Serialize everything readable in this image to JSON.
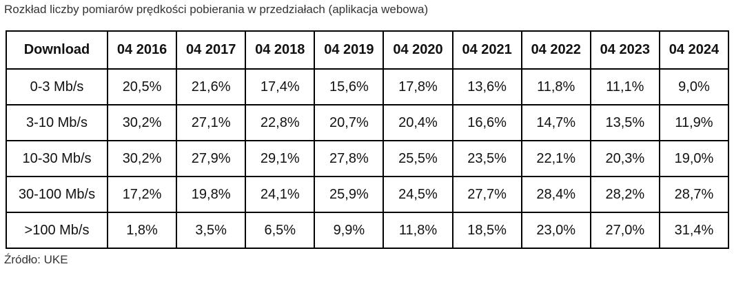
{
  "title": "Rozkład liczby pomiarów prędkości pobierania w przedziałach (aplikacja webowa)",
  "table": {
    "header": [
      "Download",
      "04 2016",
      "04 2017",
      "04 2018",
      "04 2019",
      "04 2020",
      "04 2021",
      "04 2022",
      "04 2023",
      "04 2024"
    ],
    "rows": [
      [
        "0-3 Mb/s",
        "20,5%",
        "21,6%",
        "17,4%",
        "15,6%",
        "17,8%",
        "13,6%",
        "11,8%",
        "11,1%",
        "9,0%"
      ],
      [
        "3-10 Mb/s",
        "30,2%",
        "27,1%",
        "22,8%",
        "20,7%",
        "20,4%",
        "16,6%",
        "14,7%",
        "13,5%",
        "11,9%"
      ],
      [
        "10-30 Mb/s",
        "30,2%",
        "27,9%",
        "29,1%",
        "27,8%",
        "25,5%",
        "23,5%",
        "22,1%",
        "20,3%",
        "19,0%"
      ],
      [
        "30-100 Mb/s",
        "17,2%",
        "19,8%",
        "24,1%",
        "25,9%",
        "24,5%",
        "27,7%",
        "28,4%",
        "28,2%",
        "28,7%"
      ],
      [
        ">100 Mb/s",
        "1,8%",
        "3,5%",
        "6,5%",
        "9,9%",
        "11,8%",
        "18,5%",
        "23,0%",
        "27,0%",
        "31,4%"
      ]
    ]
  },
  "source": "Źródło: UKE"
}
